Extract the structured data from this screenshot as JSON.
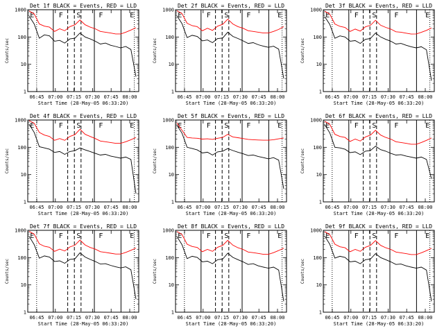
{
  "chart_data": [
    {
      "type": "line",
      "title": "Det 1f BLACK = Events, RED = LLD",
      "ylabel": "Counts/sec",
      "xlabel": "Start Time (28-May-05 06:33:20)",
      "x_ticks": [
        "06:45",
        "07:00",
        "07:15",
        "07:30",
        "07:45",
        "08:00"
      ],
      "y_ticks": [
        "1",
        "10",
        "100",
        "1000"
      ],
      "yscale": "log",
      "ylim": [
        1,
        1000
      ],
      "interval_labels": [
        "E",
        "F",
        "S",
        "F",
        "E"
      ],
      "series": [
        {
          "color": "#000000",
          "values": [
            580,
            300,
            90,
            120,
            110,
            70,
            75,
            60,
            85,
            90,
            140,
            100,
            85,
            70,
            55,
            60,
            50,
            45,
            40,
            45,
            35,
            3.5
          ]
        },
        {
          "color": "#ff0000",
          "values": [
            900,
            700,
            300,
            250,
            230,
            160,
            200,
            170,
            240,
            280,
            420,
            280,
            230,
            200,
            160,
            150,
            140,
            130,
            130,
            150,
            180,
            220
          ]
        }
      ]
    },
    {
      "type": "line",
      "title": "Det 2f BLACK = Events, RED = LLD",
      "ylabel": "Counts/sec",
      "xlabel": "Start Time (28-May-05 06:33:20)",
      "x_ticks": [
        "06:45",
        "07:00",
        "07:15",
        "07:30",
        "07:45",
        "08:00"
      ],
      "y_ticks": [
        "1",
        "10",
        "100",
        "1000"
      ],
      "yscale": "log",
      "ylim": [
        1,
        1000
      ],
      "interval_labels": [
        "E",
        "F",
        "S",
        "F",
        "E"
      ],
      "series": [
        {
          "color": "#000000",
          "values": [
            600,
            310,
            95,
            115,
            105,
            72,
            78,
            62,
            88,
            92,
            150,
            105,
            88,
            72,
            58,
            62,
            52,
            46,
            42,
            46,
            36,
            3
          ]
        },
        {
          "color": "#ff0000",
          "values": [
            920,
            720,
            320,
            260,
            240,
            170,
            210,
            175,
            250,
            290,
            450,
            300,
            240,
            210,
            170,
            160,
            150,
            140,
            140,
            160,
            190,
            240
          ]
        }
      ]
    },
    {
      "type": "line",
      "title": "Det 3f BLACK = Events, RED = LLD",
      "ylabel": "Counts/sec",
      "xlabel": "Start Time (28-May-05 06:33:20)",
      "x_ticks": [
        "06:45",
        "07:00",
        "07:15",
        "07:30",
        "07:45",
        "08:00"
      ],
      "y_ticks": [
        "1",
        "10",
        "100",
        "1000"
      ],
      "yscale": "log",
      "ylim": [
        1,
        1000
      ],
      "interval_labels": [
        "E",
        "F",
        "S",
        "F",
        "E"
      ],
      "series": [
        {
          "color": "#000000",
          "values": [
            560,
            290,
            90,
            110,
            100,
            70,
            74,
            58,
            82,
            88,
            140,
            100,
            82,
            70,
            55,
            58,
            50,
            44,
            40,
            44,
            34,
            2.5
          ]
        },
        {
          "color": "#ff0000",
          "values": [
            880,
            690,
            300,
            245,
            225,
            160,
            195,
            165,
            235,
            270,
            410,
            270,
            225,
            195,
            155,
            150,
            138,
            128,
            130,
            148,
            175,
            215
          ]
        }
      ]
    },
    {
      "type": "line",
      "title": "Det 4f BLACK = Events, RED = LLD",
      "ylabel": "Counts/sec",
      "xlabel": "Start Time (28-May-05 06:33:20)",
      "x_ticks": [
        "06:45",
        "07:00",
        "07:15",
        "07:30",
        "07:45",
        "08:00"
      ],
      "y_ticks": [
        "1",
        "10",
        "100",
        "1000"
      ],
      "yscale": "log",
      "ylim": [
        1,
        1000
      ],
      "interval_labels": [
        "E",
        "F",
        "S",
        "F",
        "E"
      ],
      "series": [
        {
          "color": "#000000",
          "values": [
            700,
            350,
            105,
            95,
            85,
            65,
            70,
            55,
            70,
            75,
            95,
            80,
            70,
            60,
            52,
            55,
            48,
            44,
            40,
            44,
            36,
            2
          ]
        },
        {
          "color": "#ff0000",
          "values": [
            950,
            760,
            350,
            280,
            250,
            180,
            210,
            180,
            250,
            290,
            460,
            300,
            250,
            210,
            170,
            160,
            150,
            140,
            140,
            160,
            190,
            230
          ]
        }
      ]
    },
    {
      "type": "line",
      "title": "Det 5f BLACK = Events, RED = LLD",
      "ylabel": "Counts/sec",
      "xlabel": "Start Time (28-May-05 06:33:20)",
      "x_ticks": [
        "06:45",
        "07:00",
        "07:15",
        "07:30",
        "07:45",
        "08:00"
      ],
      "y_ticks": [
        "1",
        "10",
        "100",
        "1000"
      ],
      "yscale": "log",
      "ylim": [
        1,
        1000
      ],
      "interval_labels": [
        "E",
        "F",
        "S",
        "F",
        "E"
      ],
      "series": [
        {
          "color": "#000000",
          "values": [
            650,
            330,
            100,
            90,
            80,
            62,
            66,
            52,
            68,
            72,
            90,
            76,
            66,
            58,
            50,
            52,
            46,
            42,
            38,
            42,
            34,
            3
          ]
        },
        {
          "color": "#ff0000",
          "values": [
            780,
            420,
            230,
            220,
            215,
            200,
            205,
            195,
            215,
            230,
            300,
            240,
            225,
            210,
            195,
            190,
            185,
            182,
            182,
            190,
            205,
            220
          ]
        }
      ]
    },
    {
      "type": "line",
      "title": "Det 6f BLACK = Events, RED = LLD",
      "ylabel": "Counts/sec",
      "xlabel": "Start Time (28-May-05 06:33:20)",
      "x_ticks": [
        "06:45",
        "07:00",
        "07:15",
        "07:30",
        "07:45",
        "08:00"
      ],
      "y_ticks": [
        "1",
        "10",
        "100",
        "1000"
      ],
      "yscale": "log",
      "ylim": [
        1,
        1000
      ],
      "interval_labels": [
        "E",
        "F",
        "S",
        "F",
        "E"
      ],
      "series": [
        {
          "color": "#000000",
          "values": [
            680,
            340,
            100,
            95,
            85,
            64,
            68,
            54,
            72,
            76,
            110,
            82,
            72,
            60,
            52,
            54,
            48,
            44,
            40,
            44,
            36,
            7
          ]
        },
        {
          "color": "#ff0000",
          "values": [
            900,
            700,
            300,
            250,
            230,
            165,
            200,
            170,
            240,
            280,
            420,
            280,
            230,
            200,
            160,
            150,
            140,
            130,
            130,
            150,
            180,
            220
          ]
        }
      ]
    },
    {
      "type": "line",
      "title": "Det 7f BLACK = Events, RED = LLD",
      "ylabel": "Counts/sec",
      "xlabel": "Start Time (28-May-05 06:33:20)",
      "x_ticks": [
        "06:45",
        "07:00",
        "07:15",
        "07:30",
        "07:45",
        "08:00"
      ],
      "y_ticks": [
        "1",
        "10",
        "100",
        "1000"
      ],
      "yscale": "log",
      "ylim": [
        1,
        1000
      ],
      "interval_labels": [
        "E",
        "F",
        "S",
        "F",
        "E"
      ],
      "series": [
        {
          "color": "#000000",
          "values": [
            600,
            300,
            95,
            115,
            105,
            72,
            76,
            62,
            86,
            90,
            150,
            105,
            86,
            72,
            58,
            60,
            52,
            46,
            42,
            46,
            36,
            3
          ]
        },
        {
          "color": "#ff0000",
          "values": [
            920,
            720,
            320,
            260,
            240,
            170,
            205,
            175,
            245,
            285,
            440,
            290,
            235,
            205,
            165,
            155,
            145,
            135,
            135,
            155,
            185,
            225
          ]
        }
      ]
    },
    {
      "type": "line",
      "title": "Det 8f BLACK = Events, RED = LLD",
      "ylabel": "Counts/sec",
      "xlabel": "Start Time (28-May-05 06:33:20)",
      "x_ticks": [
        "06:45",
        "07:00",
        "07:15",
        "07:30",
        "07:45",
        "08:00"
      ],
      "y_ticks": [
        "1",
        "10",
        "100",
        "1000"
      ],
      "yscale": "log",
      "ylim": [
        1,
        1000
      ],
      "interval_labels": [
        "E",
        "F",
        "S",
        "F",
        "E"
      ],
      "series": [
        {
          "color": "#000000",
          "values": [
            590,
            300,
            92,
            112,
            102,
            70,
            74,
            60,
            84,
            88,
            145,
            102,
            84,
            70,
            56,
            60,
            50,
            45,
            41,
            45,
            35,
            2.5
          ]
        },
        {
          "color": "#ff0000",
          "values": [
            910,
            710,
            310,
            255,
            235,
            165,
            200,
            170,
            240,
            280,
            430,
            285,
            230,
            200,
            160,
            152,
            142,
            132,
            132,
            152,
            182,
            222
          ]
        }
      ]
    },
    {
      "type": "line",
      "title": "Det 9f BLACK = Events, RED = LLD",
      "ylabel": "Counts/sec",
      "xlabel": "Start Time (28-May-05 06:33:20)",
      "x_ticks": [
        "06:45",
        "07:00",
        "07:15",
        "07:30",
        "07:45",
        "08:00"
      ],
      "y_ticks": [
        "1",
        "10",
        "100",
        "1000"
      ],
      "yscale": "log",
      "ylim": [
        1,
        1000
      ],
      "interval_labels": [
        "E",
        "F",
        "S",
        "F",
        "E"
      ],
      "series": [
        {
          "color": "#000000",
          "values": [
            620,
            310,
            96,
            112,
            102,
            70,
            74,
            60,
            84,
            88,
            140,
            100,
            84,
            70,
            56,
            58,
            50,
            45,
            41,
            45,
            35,
            2.5
          ]
        },
        {
          "color": "#ff0000",
          "values": [
            900,
            700,
            310,
            250,
            230,
            165,
            200,
            170,
            240,
            280,
            420,
            280,
            230,
            200,
            160,
            150,
            140,
            130,
            130,
            150,
            180,
            220
          ]
        }
      ]
    }
  ]
}
